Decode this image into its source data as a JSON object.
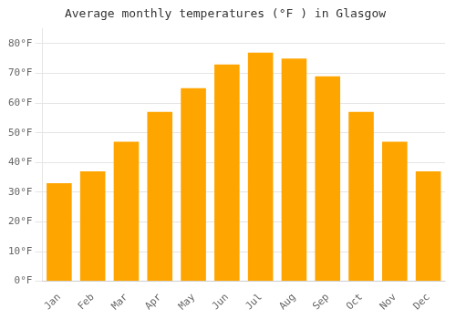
{
  "chart_data": {
    "type": "bar",
    "title": "Average monthly temperatures (°F ) in Glasgow",
    "categories": [
      "Jan",
      "Feb",
      "Mar",
      "Apr",
      "May",
      "Jun",
      "Jul",
      "Aug",
      "Sep",
      "Oct",
      "Nov",
      "Dec"
    ],
    "values": [
      33,
      37,
      47,
      57,
      65,
      73,
      77,
      75,
      69,
      57,
      47,
      37
    ],
    "color": "#FFA500",
    "ylim": [
      0,
      85
    ],
    "yticks": [
      {
        "value": 0,
        "label": "0°F"
      },
      {
        "value": 10,
        "label": "10°F"
      },
      {
        "value": 20,
        "label": "20°F"
      },
      {
        "value": 30,
        "label": "30°F"
      },
      {
        "value": 40,
        "label": "40°F"
      },
      {
        "value": 50,
        "label": "50°F"
      },
      {
        "value": 60,
        "label": "60°F"
      },
      {
        "value": 70,
        "label": "70°F"
      },
      {
        "value": 80,
        "label": "80°F"
      }
    ],
    "grid": "y"
  }
}
